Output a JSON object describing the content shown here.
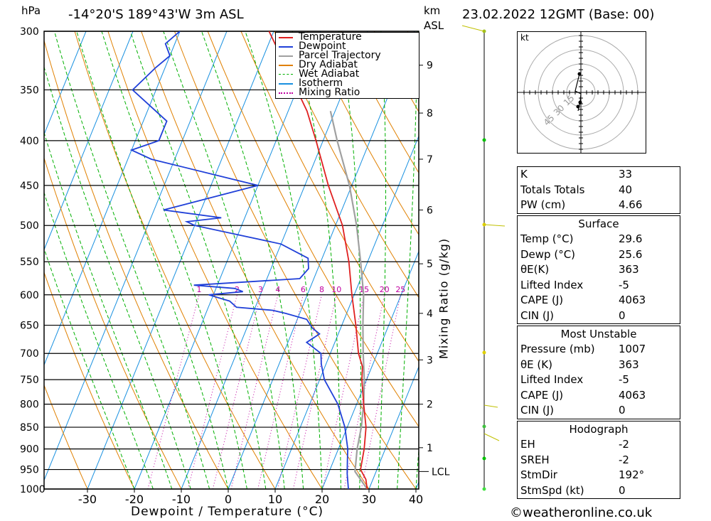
{
  "header": {
    "unit_left": "hPa",
    "location": "-14°20'S  189°43'W  3m  ASL",
    "unit_right_km": "km",
    "unit_right_asl": "ASL",
    "datetime": "23.02.2022  12GMT  (Base: 00)"
  },
  "footer": {
    "xlabel": "Dewpoint / Temperature (°C)",
    "ylabel_right": "Mixing Ratio (g/kg)",
    "credit": "©weatheronline.co.uk"
  },
  "legend": [
    {
      "label": "Temperature",
      "color": "#e02020"
    },
    {
      "label": "Dewpoint",
      "color": "#2040d8"
    },
    {
      "label": "Parcel Trajectory",
      "color": "#a0a0a0"
    },
    {
      "label": "Dry Adiabat",
      "color": "#e08000"
    },
    {
      "label": "Wet Adiabat",
      "color": "#00b000"
    },
    {
      "label": "Isotherm",
      "color": "#1890e0"
    },
    {
      "label": "Mixing Ratio",
      "color": "#c000a0"
    }
  ],
  "chart_data": {
    "type": "skew-t",
    "pressure_ticks": [
      300,
      350,
      400,
      450,
      500,
      550,
      600,
      650,
      700,
      750,
      800,
      850,
      900,
      950,
      1000
    ],
    "temp_ticks": [
      -30,
      -20,
      -10,
      0,
      10,
      20,
      30,
      40
    ],
    "km_ticks": [
      {
        "label": "9",
        "p": 328
      },
      {
        "label": "8",
        "p": 372
      },
      {
        "label": "7",
        "p": 420
      },
      {
        "label": "6",
        "p": 480
      },
      {
        "label": "5",
        "p": 553
      },
      {
        "label": "4",
        "p": 630
      },
      {
        "label": "3",
        "p": 712
      },
      {
        "label": "2",
        "p": 800
      },
      {
        "label": "1",
        "p": 897
      }
    ],
    "lcl": {
      "label": "LCL",
      "p": 955
    },
    "mixing_ratio_labels": [
      "1",
      "2",
      "3",
      "4",
      "6",
      "8",
      "10",
      "15",
      "20",
      "25"
    ],
    "temperature": [
      [
        1000,
        29.6
      ],
      [
        975,
        28.5
      ],
      [
        950,
        26.5
      ],
      [
        925,
        26
      ],
      [
        900,
        25.5
      ],
      [
        850,
        24
      ],
      [
        800,
        21.5
      ],
      [
        750,
        19
      ],
      [
        725,
        18
      ],
      [
        700,
        16
      ],
      [
        650,
        13
      ],
      [
        600,
        9.5
      ],
      [
        550,
        6
      ],
      [
        500,
        1.5
      ],
      [
        450,
        -5
      ],
      [
        400,
        -11.5
      ],
      [
        370,
        -16
      ],
      [
        300,
        -31
      ]
    ],
    "dewpoint": [
      [
        1000,
        25.6
      ],
      [
        960,
        24
      ],
      [
        930,
        23
      ],
      [
        900,
        22
      ],
      [
        850,
        19.5
      ],
      [
        800,
        16
      ],
      [
        750,
        11
      ],
      [
        720,
        9
      ],
      [
        700,
        8
      ],
      [
        680,
        4
      ],
      [
        665,
        6
      ],
      [
        655,
        4
      ],
      [
        640,
        2
      ],
      [
        630,
        -3
      ],
      [
        625,
        -6
      ],
      [
        620,
        -14
      ],
      [
        610,
        -16
      ],
      [
        600,
        -21
      ],
      [
        595,
        -14
      ],
      [
        590,
        -16
      ],
      [
        585,
        -25
      ],
      [
        575,
        -3
      ],
      [
        560,
        -2
      ],
      [
        545,
        -3
      ],
      [
        525,
        -10
      ],
      [
        500,
        -30
      ],
      [
        495,
        -32
      ],
      [
        490,
        -25
      ],
      [
        480,
        -38
      ],
      [
        450,
        -20
      ],
      [
        420,
        -45
      ],
      [
        410,
        -50
      ],
      [
        400,
        -45
      ],
      [
        380,
        -45
      ],
      [
        350,
        -55
      ],
      [
        330,
        -52
      ],
      [
        320,
        -50
      ],
      [
        310,
        -52
      ],
      [
        300,
        -50
      ]
    ],
    "parcel": [
      [
        1000,
        29.6
      ],
      [
        955,
        25.5
      ],
      [
        900,
        24
      ],
      [
        850,
        23
      ],
      [
        800,
        21.5
      ],
      [
        750,
        19.5
      ],
      [
        700,
        17
      ],
      [
        650,
        14.5
      ],
      [
        600,
        12
      ],
      [
        550,
        8.5
      ],
      [
        500,
        4.5
      ],
      [
        450,
        -0.5
      ],
      [
        400,
        -7
      ],
      [
        370,
        -11
      ]
    ],
    "hodograph": {
      "unit": "kt",
      "rings": [
        "15",
        "30",
        "45"
      ]
    }
  },
  "indices": {
    "block1": [
      {
        "label": "K",
        "value": "33"
      },
      {
        "label": "Totals Totals",
        "value": "40"
      },
      {
        "label": "PW (cm)",
        "value": "4.66"
      }
    ],
    "surface": {
      "title": "Surface",
      "rows": [
        {
          "label": "Temp (°C)",
          "value": "29.6"
        },
        {
          "label": "Dewp (°C)",
          "value": "25.6"
        },
        {
          "label": "θE(K)",
          "value": "363"
        },
        {
          "label": "Lifted Index",
          "value": "-5"
        },
        {
          "label": "CAPE (J)",
          "value": "4063"
        },
        {
          "label": "CIN (J)",
          "value": "0"
        }
      ]
    },
    "unstable": {
      "title": "Most Unstable",
      "rows": [
        {
          "label": "Pressure (mb)",
          "value": "1007"
        },
        {
          "label": "θE (K)",
          "value": "363"
        },
        {
          "label": "Lifted Index",
          "value": "-5"
        },
        {
          "label": "CAPE (J)",
          "value": "4063"
        },
        {
          "label": "CIN (J)",
          "value": "0"
        }
      ]
    },
    "hodo": {
      "title": "Hodograph",
      "rows": [
        {
          "label": "EH",
          "value": "-2"
        },
        {
          "label": "SREH",
          "value": "-2"
        },
        {
          "label": "StmDir",
          "value": "192°"
        },
        {
          "label": "StmSpd (kt)",
          "value": "0"
        }
      ]
    }
  }
}
